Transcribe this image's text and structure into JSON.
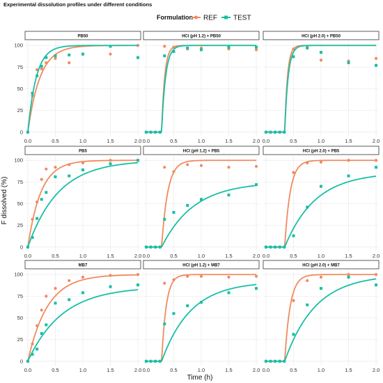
{
  "figure": {
    "title": "Experimental dissolution profiles under different conditions",
    "xlabel": "Time (h)",
    "ylabel": "F dissolved (%)",
    "legend_title": "Formulation",
    "legend_position": "top",
    "background": "#ffffff"
  },
  "colors": {
    "REF": "#F08A5D",
    "TEST": "#17BFA5",
    "strip_bg": "#ffffff",
    "grid": "#e6e6e6",
    "axis_text": "#333333"
  },
  "axis": {
    "x_ticks": [
      0.0,
      0.5,
      1.0,
      1.5,
      2.0
    ],
    "x_tick_labels": [
      "0.0",
      "0.5",
      "1.0",
      "1.5",
      "2.0"
    ],
    "y_ticks": [
      0,
      25,
      50,
      75,
      100
    ],
    "y_tick_labels": [
      "0",
      "25",
      "50",
      "75",
      "100"
    ],
    "xlim": [
      -0.05,
      2.05
    ],
    "ylim": [
      -5,
      105
    ]
  },
  "chart_data": [
    {
      "type": "scatter+line",
      "title": "PB50",
      "series": [
        {
          "name": "REF",
          "shape": "circle",
          "x": [
            0,
            0.083,
            0.167,
            0.25,
            0.333,
            0.5,
            0.75,
            1,
            1.5,
            2
          ],
          "y": [
            0,
            42,
            72,
            73,
            80,
            85,
            80,
            90,
            90,
            100
          ],
          "fit": {
            "kind": "exp",
            "tlag": 0,
            "fmax": 100,
            "k": 4.5
          }
        },
        {
          "name": "TEST",
          "shape": "square",
          "x": [
            0,
            0.083,
            0.167,
            0.25,
            0.333,
            0.5,
            0.75,
            1,
            1.5,
            2
          ],
          "y": [
            0,
            45,
            65,
            76,
            86,
            88,
            89,
            90,
            99,
            86
          ],
          "fit": {
            "kind": "exp",
            "tlag": 0,
            "fmax": 100,
            "k": 6.5
          }
        }
      ]
    },
    {
      "type": "scatter+line",
      "title": "HCl (pH 1.2) + PB50",
      "series": [
        {
          "name": "REF",
          "shape": "circle",
          "x": [
            0,
            0.083,
            0.167,
            0.25,
            0.333,
            0.5,
            0.75,
            1,
            1.5,
            2
          ],
          "y": [
            0,
            0,
            0,
            0,
            99,
            98,
            96,
            97,
            96,
            95
          ],
          "fit": {
            "kind": "exp",
            "tlag": 0.28,
            "fmax": 100,
            "k": 18
          }
        },
        {
          "name": "TEST",
          "shape": "square",
          "x": [
            0,
            0.083,
            0.167,
            0.25,
            0.333,
            0.5,
            0.75,
            1,
            1.5,
            2
          ],
          "y": [
            0,
            0,
            0,
            0,
            88,
            93,
            97,
            95,
            98,
            98
          ],
          "fit": {
            "kind": "exp",
            "tlag": 0.28,
            "fmax": 100,
            "k": 14
          }
        }
      ]
    },
    {
      "type": "scatter+line",
      "title": "HCl (pH 2.0) + PB50",
      "series": [
        {
          "name": "REF",
          "shape": "circle",
          "x": [
            0,
            0.083,
            0.167,
            0.25,
            0.333,
            0.5,
            0.75,
            1,
            1.5,
            2
          ],
          "y": [
            0,
            0,
            0,
            0,
            0,
            96,
            98,
            83,
            82,
            85
          ],
          "fit": {
            "kind": "exp",
            "tlag": 0.34,
            "fmax": 100,
            "k": 20
          }
        },
        {
          "name": "TEST",
          "shape": "square",
          "x": [
            0,
            0.083,
            0.167,
            0.25,
            0.333,
            0.5,
            0.75,
            1,
            1.5,
            2
          ],
          "y": [
            0,
            0,
            0,
            0,
            0,
            87,
            97,
            92,
            80,
            77
          ],
          "fit": {
            "kind": "exp",
            "tlag": 0.34,
            "fmax": 100,
            "k": 16
          }
        }
      ]
    },
    {
      "type": "scatter+line",
      "title": "PB5",
      "series": [
        {
          "name": "REF",
          "shape": "circle",
          "x": [
            0,
            0.083,
            0.167,
            0.25,
            0.333,
            0.5,
            0.75,
            1,
            1.5,
            2
          ],
          "y": [
            0,
            32,
            52,
            78,
            90,
            92,
            95,
            97,
            100,
            100
          ],
          "fit": {
            "kind": "exp",
            "tlag": 0,
            "fmax": 100,
            "k": 4.2
          }
        },
        {
          "name": "TEST",
          "shape": "square",
          "x": [
            0,
            0.083,
            0.167,
            0.25,
            0.333,
            0.5,
            0.75,
            1,
            1.5,
            2
          ],
          "y": [
            0,
            11,
            33,
            55,
            63,
            81,
            82,
            89,
            96,
            100
          ],
          "fit": {
            "kind": "exp",
            "tlag": 0,
            "fmax": 100,
            "k": 1.8
          }
        }
      ]
    },
    {
      "type": "scatter+line",
      "title": "HCl (pH 1.2) + PB5",
      "series": [
        {
          "name": "REF",
          "shape": "circle",
          "x": [
            0,
            0.083,
            0.167,
            0.25,
            0.333,
            0.5,
            0.75,
            1,
            1.5,
            2
          ],
          "y": [
            0,
            0,
            0,
            0,
            92,
            87,
            95,
            94,
            92,
            93
          ],
          "fit": {
            "kind": "exp",
            "tlag": 0.28,
            "fmax": 100,
            "k": 9
          }
        },
        {
          "name": "TEST",
          "shape": "square",
          "x": [
            0,
            0.083,
            0.167,
            0.25,
            0.333,
            0.5,
            0.75,
            1,
            1.5,
            2
          ],
          "y": [
            0,
            0,
            0,
            0,
            32,
            40,
            48,
            55,
            60,
            72
          ],
          "fit": {
            "kind": "exp",
            "tlag": 0.28,
            "fmax": 75,
            "k": 1.7
          }
        }
      ]
    },
    {
      "type": "scatter+line",
      "title": "HCl (pH 2.0) + PB5",
      "series": [
        {
          "name": "REF",
          "shape": "circle",
          "x": [
            0,
            0.083,
            0.167,
            0.25,
            0.333,
            0.5,
            0.75,
            1,
            1.5,
            2
          ],
          "y": [
            0,
            0,
            0,
            0,
            0,
            86,
            97,
            98,
            100,
            100
          ],
          "fit": {
            "kind": "exp",
            "tlag": 0.34,
            "fmax": 100,
            "k": 10
          }
        },
        {
          "name": "TEST",
          "shape": "square",
          "x": [
            0,
            0.083,
            0.167,
            0.25,
            0.333,
            0.5,
            0.75,
            1,
            1.5,
            2
          ],
          "y": [
            0,
            0,
            0,
            0,
            0,
            13,
            46,
            70,
            82,
            92
          ],
          "fit": {
            "kind": "exp",
            "tlag": 0.34,
            "fmax": 86,
            "k": 1.8
          }
        }
      ]
    },
    {
      "type": "scatter+line",
      "title": "MB7",
      "series": [
        {
          "name": "REF",
          "shape": "circle",
          "x": [
            0,
            0.083,
            0.167,
            0.25,
            0.333,
            0.5,
            0.75,
            1,
            1.5,
            2
          ],
          "y": [
            0,
            20,
            41,
            59,
            75,
            84,
            93,
            97,
            99,
            100
          ],
          "fit": {
            "kind": "exp",
            "tlag": 0,
            "fmax": 100,
            "k": 2.8
          }
        },
        {
          "name": "TEST",
          "shape": "square",
          "x": [
            0,
            0.083,
            0.167,
            0.25,
            0.333,
            0.5,
            0.75,
            1,
            1.5,
            2
          ],
          "y": [
            0,
            8,
            14,
            32,
            42,
            67,
            71,
            79,
            86,
            88
          ],
          "fit": {
            "kind": "exp",
            "tlag": 0,
            "fmax": 86,
            "k": 1.6
          }
        }
      ]
    },
    {
      "type": "scatter+line",
      "title": "HCl (pH 1.2) + MB7",
      "series": [
        {
          "name": "REF",
          "shape": "circle",
          "x": [
            0,
            0.083,
            0.167,
            0.25,
            0.333,
            0.5,
            0.75,
            1,
            1.5,
            2
          ],
          "y": [
            0,
            0,
            0,
            0,
            90,
            94,
            98,
            98,
            97,
            98
          ],
          "fit": {
            "kind": "exp",
            "tlag": 0.28,
            "fmax": 100,
            "k": 12
          }
        },
        {
          "name": "TEST",
          "shape": "square",
          "x": [
            0,
            0.083,
            0.167,
            0.25,
            0.333,
            0.5,
            0.75,
            1,
            1.5,
            2
          ],
          "y": [
            0,
            0,
            0,
            0,
            43,
            55,
            64,
            68,
            79,
            84
          ],
          "fit": {
            "kind": "exp",
            "tlag": 0.28,
            "fmax": 92,
            "k": 1.9
          }
        }
      ]
    },
    {
      "type": "scatter+line",
      "title": "HCl (pH 2.0) + MB7",
      "series": [
        {
          "name": "REF",
          "shape": "circle",
          "x": [
            0,
            0.083,
            0.167,
            0.25,
            0.333,
            0.5,
            0.75,
            1,
            1.5,
            2
          ],
          "y": [
            0,
            0,
            0,
            0,
            0,
            70,
            93,
            97,
            100,
            100
          ],
          "fit": {
            "kind": "exp",
            "tlag": 0.34,
            "fmax": 100,
            "k": 10
          }
        },
        {
          "name": "TEST",
          "shape": "square",
          "x": [
            0,
            0.083,
            0.167,
            0.25,
            0.333,
            0.5,
            0.75,
            1,
            1.5,
            2
          ],
          "y": [
            0,
            0,
            0,
            0,
            0,
            31,
            65,
            84,
            97,
            88
          ],
          "fit": {
            "kind": "exp",
            "tlag": 0.34,
            "fmax": 100,
            "k": 1.8
          }
        }
      ]
    }
  ]
}
